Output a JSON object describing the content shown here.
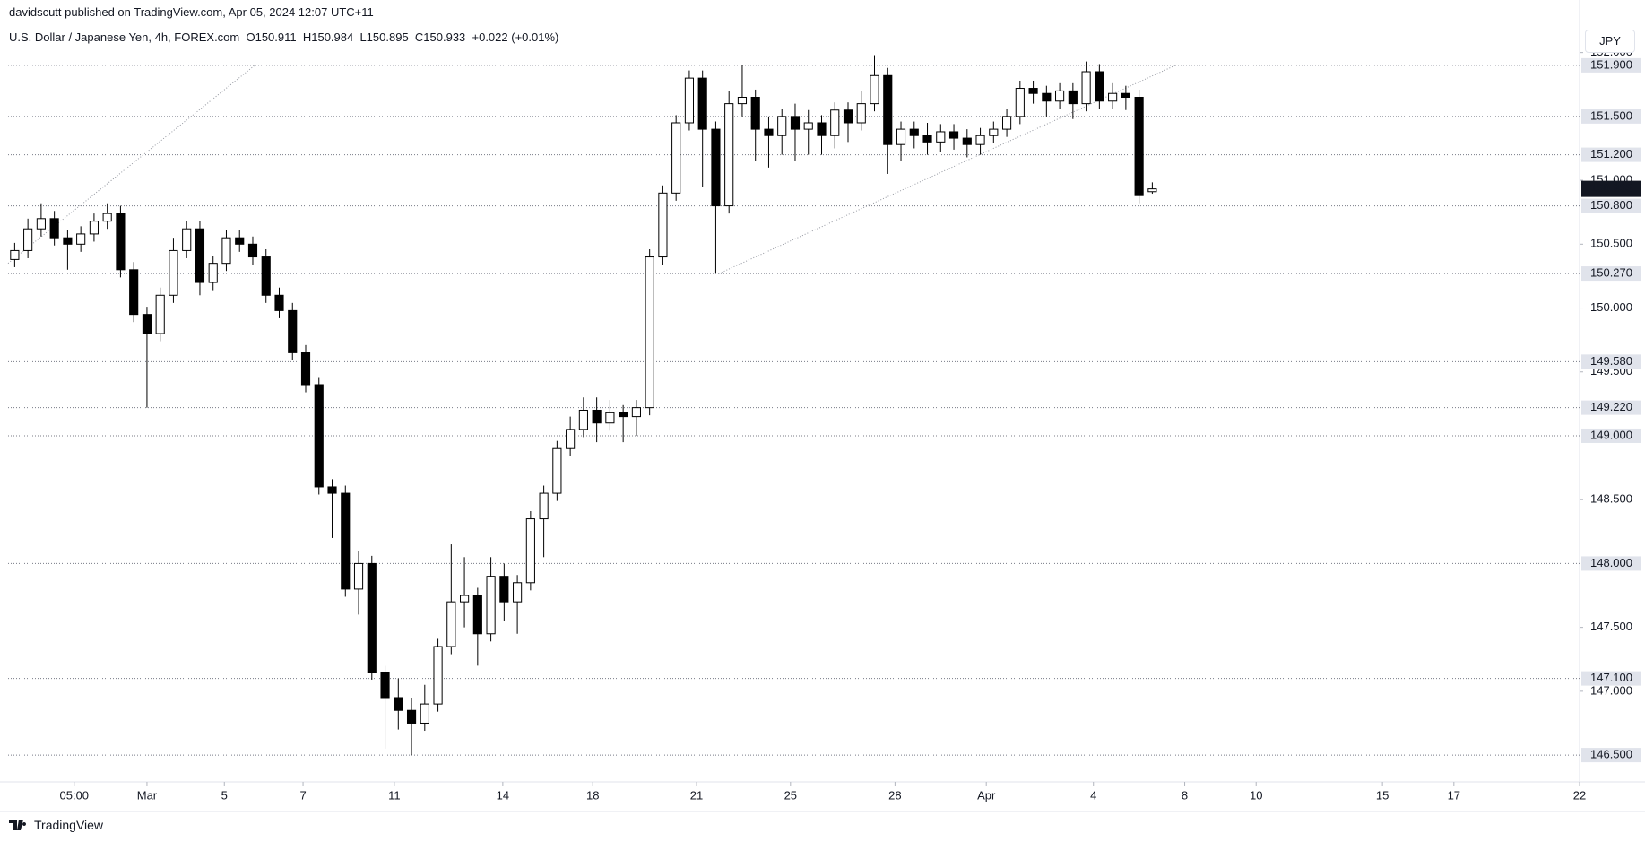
{
  "header": {
    "publisher": "davidscutt published on TradingView.com, Apr 05, 2024 12:07 UTC+11",
    "symbol": "U.S. Dollar / Japanese Yen, 4h, FOREX.com",
    "ohlc": "O150.911  H150.984  L150.895  C150.933  +0.022 (+0.01%)",
    "currency": "JPY"
  },
  "footer": {
    "brand": "TradingView"
  },
  "chart_data": {
    "type": "candlestick",
    "x": [
      1,
      3,
      5,
      7,
      9,
      11,
      13,
      15,
      17,
      19,
      21,
      23,
      25,
      27,
      29,
      31,
      33,
      35,
      37,
      39,
      41,
      43,
      45,
      47,
      49,
      51,
      53,
      55,
      57,
      59,
      61,
      63,
      65,
      67,
      69,
      71,
      73,
      75,
      77,
      79,
      81,
      83,
      85,
      87,
      89,
      91,
      93,
      95,
      97,
      99,
      101,
      103,
      105,
      107,
      109,
      111,
      113,
      115,
      117,
      119,
      121,
      123,
      125,
      127,
      129,
      131,
      133,
      135,
      137,
      139,
      141,
      143,
      145,
      147,
      149,
      151,
      153,
      155,
      157,
      159,
      161,
      163,
      165,
      167,
      169,
      171,
      173
    ],
    "open": [
      150.38,
      150.45,
      150.62,
      150.7,
      150.55,
      150.5,
      150.58,
      150.68,
      150.74,
      150.3,
      149.95,
      149.8,
      150.1,
      150.45,
      150.62,
      150.2,
      150.35,
      150.55,
      150.5,
      150.4,
      150.1,
      149.98,
      149.65,
      149.4,
      148.6,
      148.55,
      147.8,
      148.0,
      147.15,
      146.95,
      146.85,
      146.75,
      146.9,
      147.35,
      147.7,
      147.75,
      147.45,
      147.9,
      147.7,
      147.85,
      148.35,
      148.55,
      148.9,
      149.05,
      149.2,
      149.1,
      149.18,
      149.15,
      149.22,
      150.4,
      150.9,
      151.45,
      151.8,
      151.4,
      150.8,
      151.6,
      151.65,
      151.4,
      151.35,
      151.5,
      151.4,
      151.45,
      151.35,
      151.55,
      151.45,
      151.6,
      151.82,
      151.28,
      151.4,
      151.35,
      151.3,
      151.38,
      151.33,
      151.28,
      151.35,
      151.4,
      151.5,
      151.72,
      151.68,
      151.62,
      151.7,
      151.6,
      151.85,
      151.62,
      151.68,
      151.65,
      150.911
    ],
    "high": [
      150.51,
      150.7,
      150.82,
      150.76,
      150.61,
      150.64,
      150.74,
      150.82,
      150.8,
      150.36,
      150.01,
      150.16,
      150.55,
      150.68,
      150.68,
      150.41,
      150.61,
      150.61,
      150.56,
      150.46,
      150.16,
      150.04,
      149.71,
      149.46,
      148.66,
      148.61,
      148.1,
      148.06,
      147.2,
      147.1,
      146.95,
      147.05,
      147.41,
      148.15,
      148.05,
      147.81,
      148.05,
      148.0,
      147.91,
      148.41,
      148.61,
      148.96,
      149.15,
      149.3,
      149.3,
      149.28,
      149.24,
      149.28,
      150.46,
      150.96,
      151.51,
      151.86,
      151.86,
      151.46,
      151.7,
      151.9,
      151.71,
      151.5,
      151.56,
      151.6,
      151.55,
      151.51,
      151.61,
      151.61,
      151.7,
      151.98,
      151.88,
      151.46,
      151.46,
      151.45,
      151.44,
      151.44,
      151.4,
      151.41,
      151.46,
      151.56,
      151.78,
      151.78,
      151.74,
      151.76,
      151.76,
      151.93,
      151.91,
      151.76,
      151.74,
      151.71,
      150.984
    ],
    "low": [
      150.32,
      150.39,
      150.56,
      150.49,
      150.3,
      150.44,
      150.52,
      150.62,
      150.24,
      149.89,
      149.22,
      149.74,
      150.04,
      150.39,
      150.1,
      150.14,
      150.29,
      150.44,
      150.34,
      150.04,
      149.92,
      149.59,
      149.34,
      148.54,
      148.2,
      147.74,
      147.6,
      147.09,
      146.55,
      146.7,
      146.5,
      146.69,
      146.84,
      147.29,
      147.5,
      147.2,
      147.39,
      147.55,
      147.45,
      147.79,
      148.05,
      148.49,
      148.84,
      148.99,
      148.95,
      149.04,
      148.95,
      149.0,
      149.16,
      150.34,
      150.84,
      151.39,
      150.95,
      150.27,
      150.74,
      151.5,
      151.15,
      151.1,
      151.2,
      151.15,
      151.2,
      151.2,
      151.25,
      151.3,
      151.39,
      151.54,
      151.05,
      151.15,
      151.25,
      151.2,
      151.22,
      151.24,
      151.18,
      151.2,
      151.29,
      151.34,
      151.44,
      151.6,
      151.5,
      151.56,
      151.48,
      151.54,
      151.56,
      151.56,
      151.55,
      150.82,
      150.895
    ],
    "close": [
      150.45,
      150.62,
      150.7,
      150.55,
      150.5,
      150.58,
      150.68,
      150.74,
      150.3,
      149.95,
      149.8,
      150.1,
      150.45,
      150.62,
      150.2,
      150.35,
      150.55,
      150.5,
      150.4,
      150.1,
      149.98,
      149.65,
      149.4,
      148.6,
      148.55,
      147.8,
      148.0,
      147.15,
      146.95,
      146.85,
      146.75,
      146.9,
      147.35,
      147.7,
      147.75,
      147.45,
      147.9,
      147.7,
      147.85,
      148.35,
      148.55,
      148.9,
      149.05,
      149.2,
      149.1,
      149.18,
      149.15,
      149.22,
      150.4,
      150.9,
      151.45,
      151.8,
      151.4,
      150.8,
      151.6,
      151.65,
      151.4,
      151.35,
      151.5,
      151.4,
      151.45,
      151.35,
      151.55,
      151.45,
      151.6,
      151.82,
      151.28,
      151.4,
      151.35,
      151.3,
      151.38,
      151.33,
      151.28,
      151.35,
      151.4,
      151.5,
      151.72,
      151.68,
      151.62,
      151.7,
      151.6,
      151.85,
      151.62,
      151.68,
      151.65,
      150.88,
      150.933
    ],
    "up_color": "#ffffff",
    "down_color": "#000000",
    "wick_color": "#000000",
    "xlim": [
      0,
      237.6
    ],
    "xticks": [
      {
        "value": 10,
        "label": "05:00"
      },
      {
        "value": 21,
        "label": "Mar"
      },
      {
        "value": 32.7,
        "label": "5"
      },
      {
        "value": 44.6,
        "label": "7"
      },
      {
        "value": 58.4,
        "label": "11"
      },
      {
        "value": 74.8,
        "label": "14"
      },
      {
        "value": 88.4,
        "label": "18"
      },
      {
        "value": 104.1,
        "label": "21"
      },
      {
        "value": 118.3,
        "label": "25"
      },
      {
        "value": 134.1,
        "label": "28"
      },
      {
        "value": 147.9,
        "label": "Apr"
      },
      {
        "value": 164.1,
        "label": "4"
      },
      {
        "value": 177.9,
        "label": "8"
      },
      {
        "value": 188.7,
        "label": "10"
      },
      {
        "value": 207.8,
        "label": "15"
      },
      {
        "value": 218.6,
        "label": "17"
      },
      {
        "value": 237.6,
        "label": "22"
      }
    ],
    "ylim": [
      146.29,
      152.18
    ],
    "yticks": [
      {
        "value": 152,
        "label": "152.000"
      },
      {
        "value": 151,
        "label": "151.000"
      },
      {
        "value": 150.5,
        "label": "150.500"
      },
      {
        "value": 150,
        "label": "150.000"
      },
      {
        "value": 149.5,
        "label": "149.500"
      },
      {
        "value": 148.5,
        "label": "148.500"
      },
      {
        "value": 147.5,
        "label": "147.500"
      },
      {
        "value": 147,
        "label": "147.000"
      }
    ],
    "levels": [
      {
        "value": 151.9,
        "label": "151.900"
      },
      {
        "value": 151.5,
        "label": "151.500"
      },
      {
        "value": 151.2,
        "label": "151.200"
      },
      {
        "value": 150.8,
        "label": "150.800"
      },
      {
        "value": 150.27,
        "label": "150.270"
      },
      {
        "value": 149.58,
        "label": "149.580"
      },
      {
        "value": 149.22,
        "label": "149.220"
      },
      {
        "value": 149,
        "label": "149.000"
      },
      {
        "value": 148,
        "label": "148.000"
      },
      {
        "value": 147.1,
        "label": "147.100"
      },
      {
        "value": 146.5,
        "label": "146.500"
      }
    ],
    "last_price": {
      "value": 150.933,
      "label": "150.933"
    },
    "trend_lines": [
      {
        "x": [
          0,
          37.3
        ],
        "y": [
          150.35,
          151.9
        ]
      },
      {
        "x": [
          107.5,
          176.5
        ],
        "y": [
          150.27,
          151.9
        ]
      }
    ]
  }
}
